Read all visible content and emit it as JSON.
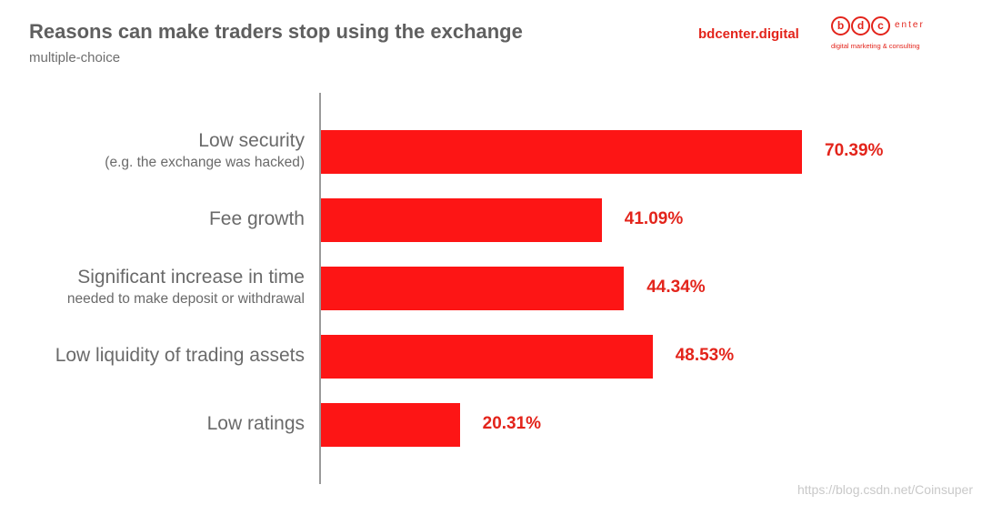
{
  "header": {
    "title": "Reasons can make traders stop using the exchange",
    "subtitle": "multiple-choice",
    "brand": "bdcenter.digital"
  },
  "logo": {
    "letters": [
      "b",
      "d",
      "c"
    ],
    "suffix": "enter",
    "tagline": "digital marketing & consulting"
  },
  "watermark": "https://blog.csdn.net/Coinsuper",
  "colors": {
    "bar": "#fd1515",
    "value_text": "#e3241b",
    "label_text": "#6a6a6a"
  },
  "chart_data": {
    "type": "bar",
    "orientation": "horizontal",
    "title": "Reasons can make traders stop using the exchange",
    "subtitle": "multiple-choice",
    "xlim": [
      0,
      100
    ],
    "grid": false,
    "categories": [
      {
        "label": "Low security",
        "sublabel": "(e.g. the exchange was hacked)"
      },
      {
        "label": "Fee growth",
        "sublabel": ""
      },
      {
        "label": "Significant increase in time",
        "sublabel": "needed to make deposit or withdrawal"
      },
      {
        "label": "Low liquidity of trading assets",
        "sublabel": ""
      },
      {
        "label": "Low ratings",
        "sublabel": ""
      }
    ],
    "values": [
      70.39,
      41.09,
      44.34,
      48.53,
      20.31
    ],
    "value_labels": [
      "70.39%",
      "41.09%",
      "44.34%",
      "48.53%",
      "20.31%"
    ],
    "unit": "%"
  }
}
